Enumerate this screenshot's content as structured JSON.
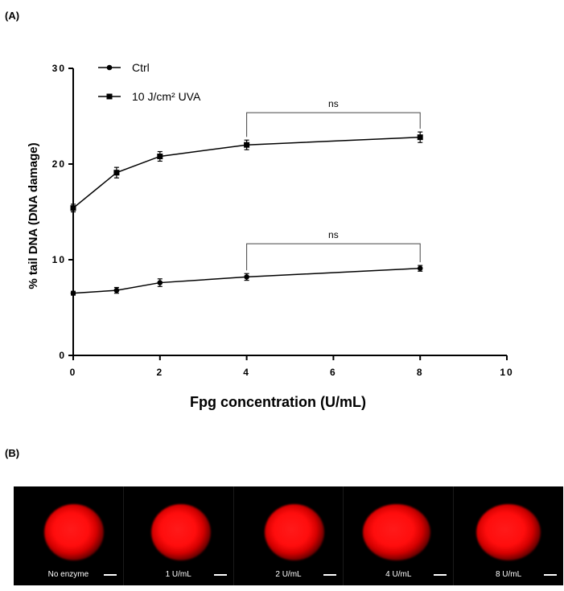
{
  "panels": {
    "a_label": "(A)",
    "b_label": "(B)"
  },
  "chart_data": {
    "type": "line",
    "title": "",
    "xlabel": "Fpg concentration (U/mL)",
    "ylabel": "% tail DNA  (DNA damage)",
    "xlim": [
      0,
      10
    ],
    "ylim": [
      0,
      30
    ],
    "xticks": [
      0,
      2,
      4,
      6,
      8,
      10
    ],
    "yticks": [
      0,
      10,
      20,
      30
    ],
    "grid": false,
    "legend_position": "top-left",
    "series": [
      {
        "name": "Ctrl",
        "marker": "circle",
        "x": [
          0,
          1,
          2,
          4,
          8
        ],
        "values": [
          6.5,
          6.8,
          7.6,
          8.2,
          9.1
        ],
        "errors": [
          0.2,
          0.3,
          0.4,
          0.35,
          0.3
        ]
      },
      {
        "name": "10 J/cm² UVA",
        "marker": "square",
        "x": [
          0,
          1,
          2,
          4,
          8
        ],
        "values": [
          15.4,
          19.1,
          20.8,
          22.0,
          22.8
        ],
        "errors": [
          0.4,
          0.55,
          0.5,
          0.5,
          0.55
        ]
      }
    ],
    "annotations": [
      {
        "text": "ns",
        "x_from": 4,
        "x_to": 8,
        "series": "10 J/cm² UVA"
      },
      {
        "text": "ns",
        "x_from": 4,
        "x_to": 8,
        "series": "Ctrl"
      }
    ]
  },
  "comet_images": {
    "captions": [
      "No enzyme",
      "1 U/mL",
      "2 U/mL",
      "4 U/mL",
      "8 U/mL"
    ]
  },
  "colors": {
    "comet": "#ff1010",
    "background": "#000000",
    "line": "#000000"
  }
}
